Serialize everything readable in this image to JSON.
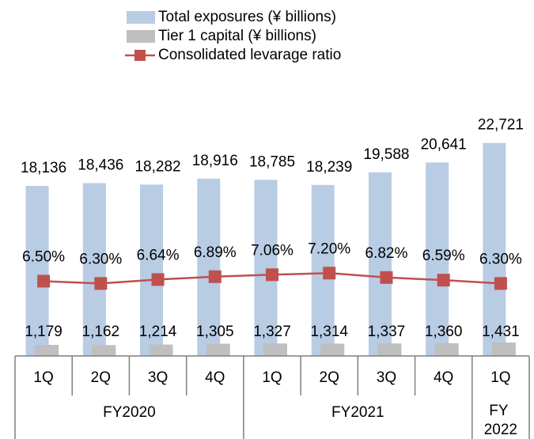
{
  "chart_data": {
    "type": "bar",
    "categories": [
      "1Q",
      "2Q",
      "3Q",
      "4Q",
      "1Q",
      "2Q",
      "3Q",
      "4Q",
      "1Q"
    ],
    "groups": [
      {
        "label": "FY2020",
        "span": 4
      },
      {
        "label": "FY2021",
        "span": 4
      },
      {
        "label": "FY 2022",
        "span": 1
      }
    ],
    "ylim": [
      0,
      27000
    ],
    "y2lim": [
      0,
      22
    ],
    "legend": "top",
    "series": [
      {
        "name": "Total exposures (¥ billions)",
        "type": "bar",
        "color": "#b8cce4",
        "values": [
          18136,
          18436,
          18282,
          18916,
          18785,
          18239,
          19588,
          20641,
          22721
        ],
        "value_labels": [
          "18,136",
          "18,436",
          "18,282",
          "18,916",
          "18,785",
          "18,239",
          "19,588",
          "20,641",
          "22,721"
        ]
      },
      {
        "name": "Tier 1 capital (¥ billions)",
        "type": "bar",
        "color": "#bfbfbf",
        "values": [
          1179,
          1162,
          1214,
          1305,
          1327,
          1314,
          1337,
          1360,
          1431
        ],
        "value_labels": [
          "1,179",
          "1,162",
          "1,214",
          "1,305",
          "1,327",
          "1,314",
          "1,337",
          "1,360",
          "1,431"
        ]
      },
      {
        "name": "Consolidated levarage ratio",
        "type": "line",
        "axis": "y2",
        "color": "#c0504d",
        "values": [
          6.5,
          6.3,
          6.64,
          6.89,
          7.06,
          7.2,
          6.82,
          6.59,
          6.3
        ],
        "value_labels": [
          "6.50%",
          "6.30%",
          "6.64%",
          "6.89%",
          "7.06%",
          "7.20%",
          "6.82%",
          "6.59%",
          "6.30%"
        ]
      }
    ]
  }
}
